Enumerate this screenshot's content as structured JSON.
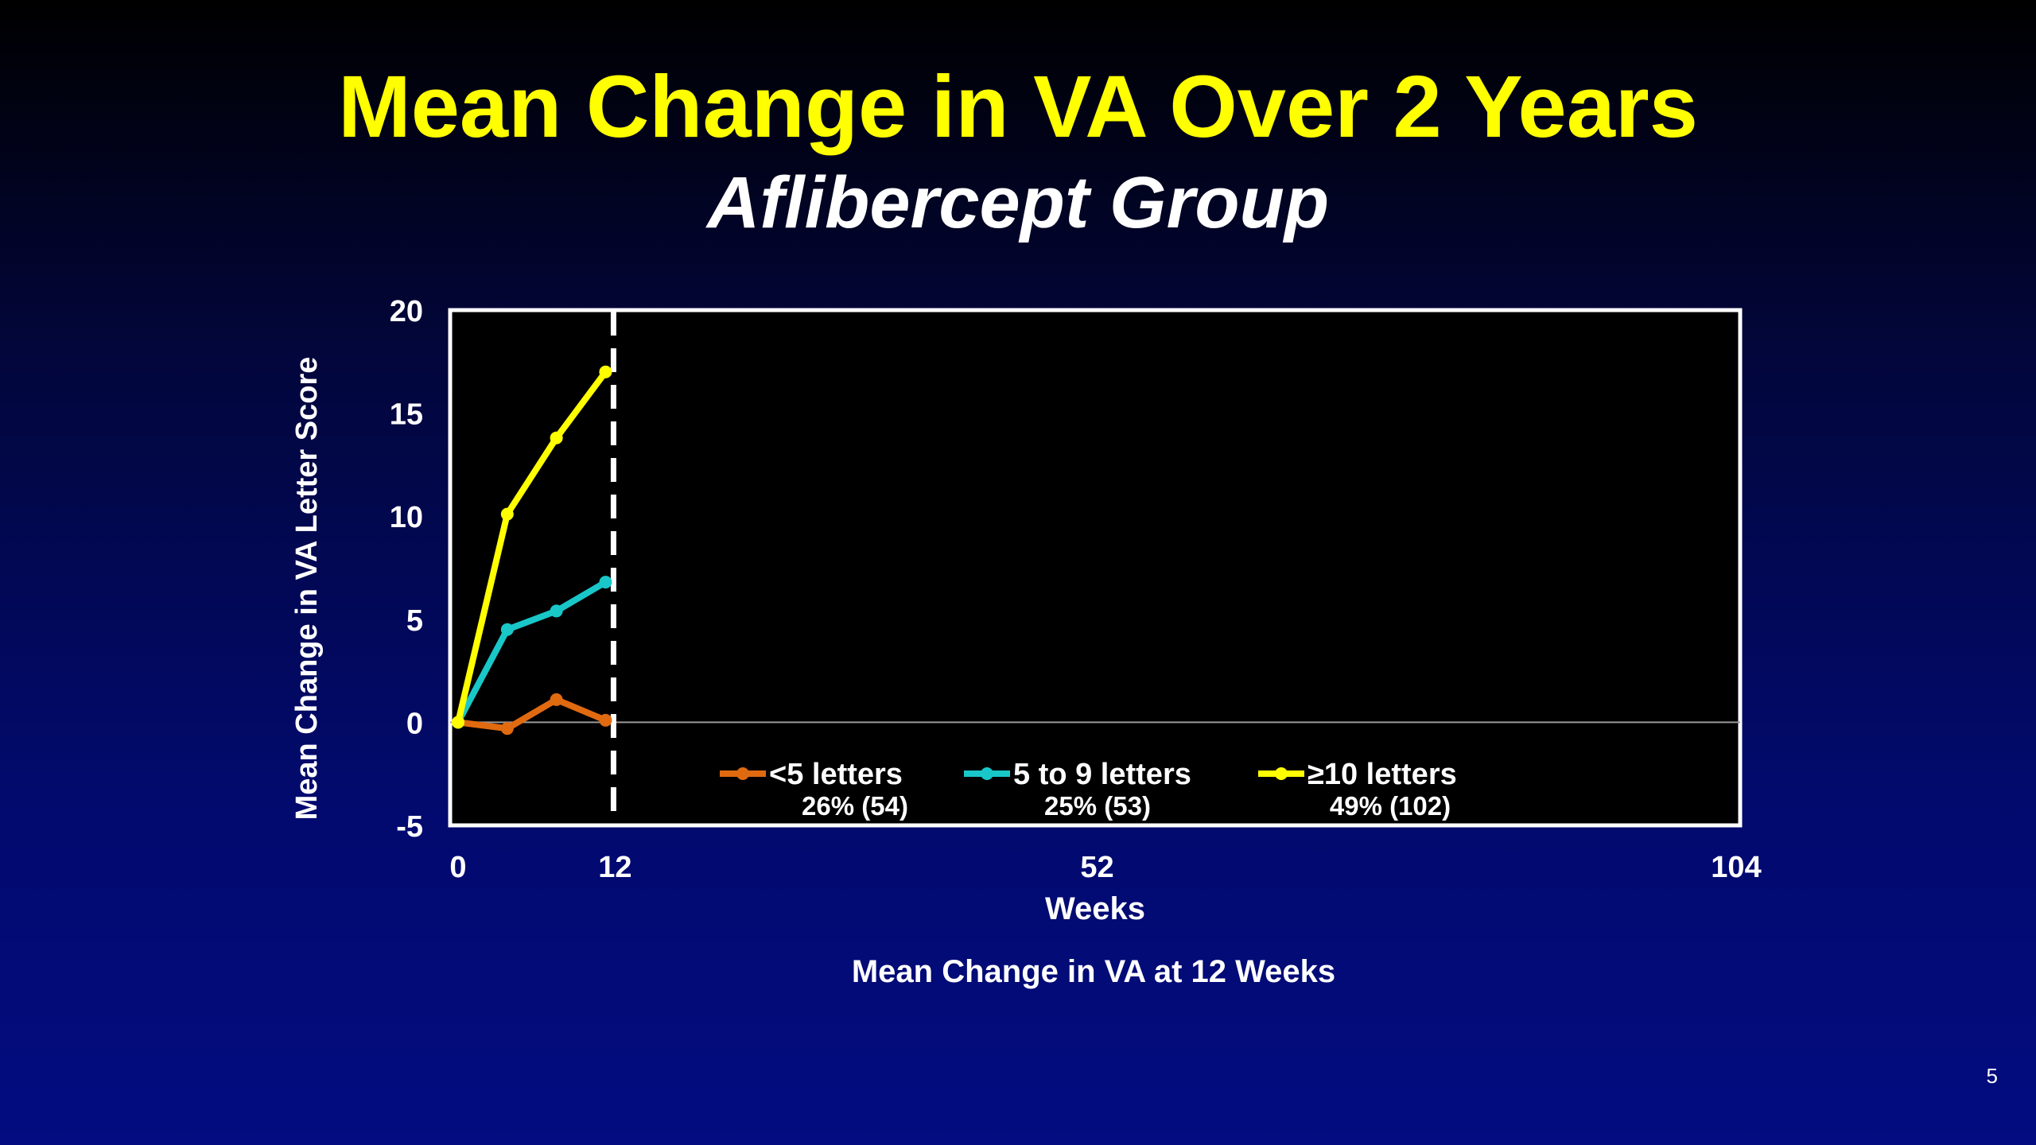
{
  "slide": {
    "title": "Mean Change in VA Over 2 Years",
    "subtitle": "Aflibercept Group",
    "page_number": "5"
  },
  "chart_data": {
    "type": "line",
    "title": "",
    "xlabel": "Weeks",
    "ylabel": "Mean Change in VA Letter Score",
    "caption": "Mean Change in VA at 12 Weeks",
    "xlim": [
      0,
      104
    ],
    "ylim": [
      -5,
      20
    ],
    "x_ticks": [
      "0",
      "12",
      "52",
      "104"
    ],
    "y_ticks": [
      "20",
      "15",
      "10",
      "5",
      "0",
      "-5"
    ],
    "grid": false,
    "reference_line": {
      "x": 12,
      "style": "dashed"
    },
    "x": [
      0,
      4,
      8,
      12
    ],
    "series": [
      {
        "name": "<5 letters",
        "sub": "26% (54)",
        "color": "#e06a10",
        "values": [
          0,
          -0.3,
          1.1,
          0.1
        ]
      },
      {
        "name": "5 to 9 letters",
        "sub": "25% (53)",
        "color": "#19c7c9",
        "values": [
          0,
          4.5,
          5.4,
          6.8
        ]
      },
      {
        "name": "≥10 letters",
        "sub": "49% (102)",
        "color": "#ffff00",
        "values": [
          0,
          10.1,
          13.8,
          17.0
        ]
      }
    ]
  }
}
